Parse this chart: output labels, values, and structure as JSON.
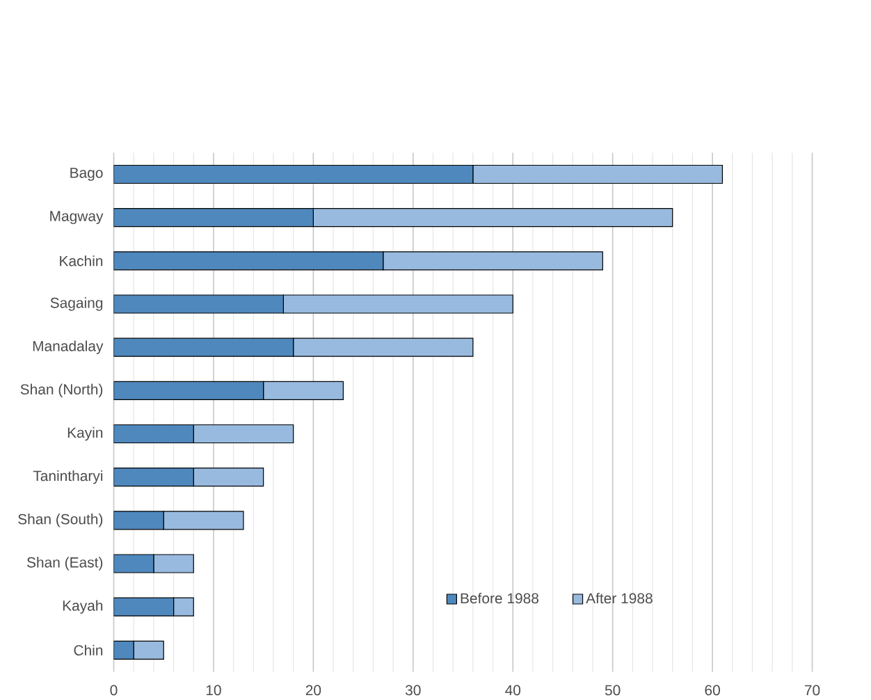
{
  "chart_data": {
    "type": "bar",
    "orientation": "horizontal",
    "stacked": true,
    "categories": [
      "Bago",
      "Magway",
      "Kachin",
      "Sagaing",
      "Manadalay",
      "Shan (North)",
      "Kayin",
      "Tanintharyi",
      "Shan (South)",
      "Shan (East)",
      "Kayah",
      "Chin"
    ],
    "series": [
      {
        "name": "Before 1988",
        "color": "#4f88bd",
        "values": [
          36,
          20,
          27,
          17,
          18,
          15,
          8,
          8,
          5,
          4,
          6,
          2
        ]
      },
      {
        "name": "After 1988",
        "color": "#98badf",
        "values": [
          25,
          36,
          22,
          23,
          18,
          8,
          10,
          7,
          8,
          4,
          2,
          3
        ]
      }
    ],
    "xlim": [
      0,
      70
    ],
    "xticks": [
      0,
      10,
      20,
      30,
      40,
      50,
      60,
      70
    ],
    "grid": "x",
    "legend": "bottom right"
  }
}
